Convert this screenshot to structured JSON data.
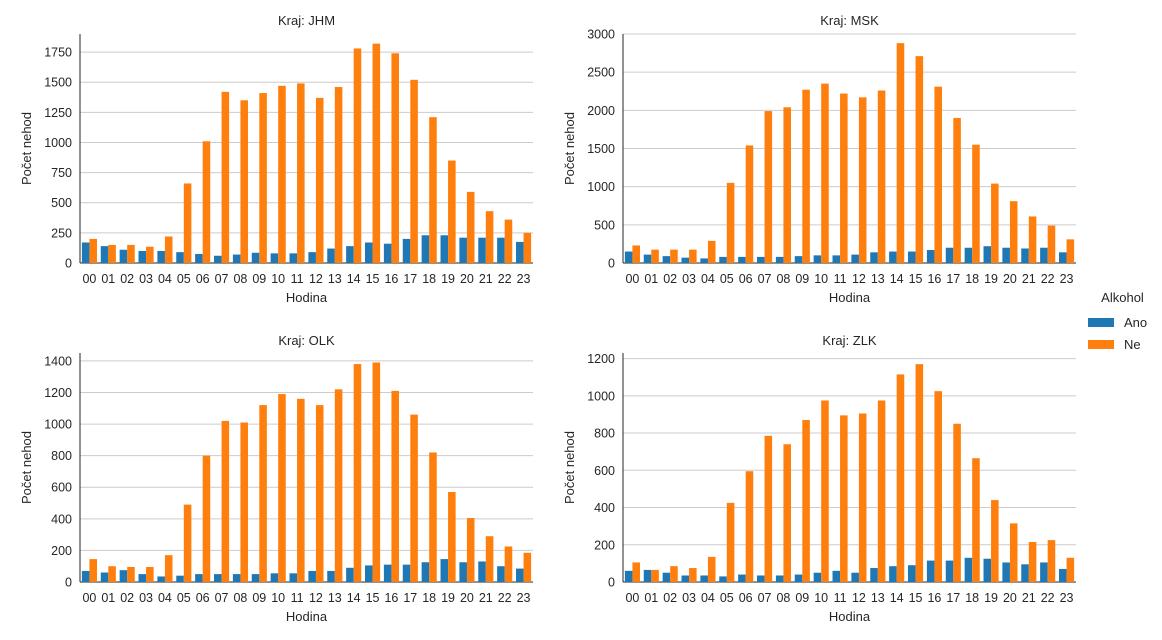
{
  "colors": {
    "Ano": "#1f77b4",
    "Ne": "#ff7f0e",
    "grid": "#cccccc",
    "axis": "#262626"
  },
  "legend": {
    "title": "Alkohol",
    "items": [
      "Ano",
      "Ne"
    ]
  },
  "chart_data": [
    {
      "type": "bar",
      "title": "Kraj: JHM",
      "xlabel": "Hodina",
      "ylabel": "Počet nehod",
      "categories": [
        "00",
        "01",
        "02",
        "03",
        "04",
        "05",
        "06",
        "07",
        "08",
        "09",
        "10",
        "11",
        "12",
        "13",
        "14",
        "15",
        "16",
        "17",
        "18",
        "19",
        "20",
        "21",
        "22",
        "23"
      ],
      "ylim": [
        0,
        1900
      ],
      "yticks": [
        0,
        250,
        500,
        750,
        1000,
        1250,
        1500,
        1750
      ],
      "grid": true,
      "series": [
        {
          "name": "Ano",
          "values": [
            170,
            140,
            110,
            100,
            100,
            90,
            75,
            60,
            70,
            85,
            80,
            80,
            90,
            120,
            140,
            170,
            160,
            200,
            230,
            230,
            210,
            210,
            210,
            175
          ]
        },
        {
          "name": "Ne",
          "values": [
            200,
            150,
            150,
            135,
            220,
            660,
            1010,
            1420,
            1350,
            1410,
            1470,
            1490,
            1370,
            1460,
            1780,
            1820,
            1740,
            1520,
            1210,
            850,
            590,
            430,
            360,
            250
          ]
        }
      ]
    },
    {
      "type": "bar",
      "title": "Kraj: MSK",
      "xlabel": "Hodina",
      "ylabel": "Počet nehod",
      "categories": [
        "00",
        "01",
        "02",
        "03",
        "04",
        "05",
        "06",
        "07",
        "08",
        "09",
        "10",
        "11",
        "12",
        "13",
        "14",
        "15",
        "16",
        "17",
        "18",
        "19",
        "20",
        "21",
        "22",
        "23"
      ],
      "ylim": [
        0,
        3000
      ],
      "yticks": [
        0,
        500,
        1000,
        1500,
        2000,
        2500,
        3000
      ],
      "grid": true,
      "series": [
        {
          "name": "Ano",
          "values": [
            150,
            110,
            90,
            70,
            60,
            80,
            80,
            80,
            80,
            90,
            100,
            100,
            110,
            140,
            150,
            150,
            170,
            200,
            200,
            220,
            200,
            190,
            200,
            140
          ]
        },
        {
          "name": "Ne",
          "values": [
            230,
            175,
            175,
            175,
            290,
            1050,
            1540,
            1990,
            2040,
            2270,
            2350,
            2220,
            2170,
            2260,
            2880,
            2710,
            2310,
            1900,
            1550,
            1040,
            810,
            610,
            490,
            310
          ]
        }
      ]
    },
    {
      "type": "bar",
      "title": "Kraj: OLK",
      "xlabel": "Hodina",
      "ylabel": "Počet nehod",
      "categories": [
        "00",
        "01",
        "02",
        "03",
        "04",
        "05",
        "06",
        "07",
        "08",
        "09",
        "10",
        "11",
        "12",
        "13",
        "14",
        "15",
        "16",
        "17",
        "18",
        "19",
        "20",
        "21",
        "22",
        "23"
      ],
      "ylim": [
        0,
        1450
      ],
      "yticks": [
        0,
        200,
        400,
        600,
        800,
        1000,
        1200,
        1400
      ],
      "grid": true,
      "series": [
        {
          "name": "Ano",
          "values": [
            70,
            60,
            75,
            50,
            35,
            40,
            50,
            50,
            50,
            50,
            55,
            55,
            70,
            70,
            90,
            105,
            110,
            110,
            125,
            145,
            125,
            130,
            100,
            85
          ]
        },
        {
          "name": "Ne",
          "values": [
            145,
            100,
            95,
            95,
            170,
            490,
            800,
            1020,
            1010,
            1120,
            1190,
            1160,
            1120,
            1220,
            1380,
            1390,
            1210,
            1060,
            820,
            570,
            405,
            290,
            225,
            185
          ]
        }
      ]
    },
    {
      "type": "bar",
      "title": "Kraj: ZLK",
      "xlabel": "Hodina",
      "ylabel": "Počet nehod",
      "categories": [
        "00",
        "01",
        "02",
        "03",
        "04",
        "05",
        "06",
        "07",
        "08",
        "09",
        "10",
        "11",
        "12",
        "13",
        "14",
        "15",
        "16",
        "17",
        "18",
        "19",
        "20",
        "21",
        "22",
        "23"
      ],
      "ylim": [
        0,
        1230
      ],
      "yticks": [
        0,
        200,
        400,
        600,
        800,
        1000,
        1200
      ],
      "grid": true,
      "series": [
        {
          "name": "Ano",
          "values": [
            60,
            65,
            50,
            35,
            35,
            30,
            40,
            35,
            35,
            40,
            50,
            60,
            50,
            75,
            85,
            90,
            115,
            115,
            130,
            125,
            105,
            95,
            105,
            70
          ]
        },
        {
          "name": "Ne",
          "values": [
            105,
            65,
            85,
            75,
            135,
            425,
            595,
            785,
            740,
            870,
            975,
            895,
            905,
            975,
            1115,
            1170,
            1025,
            850,
            665,
            440,
            315,
            215,
            225,
            130
          ]
        }
      ]
    }
  ]
}
